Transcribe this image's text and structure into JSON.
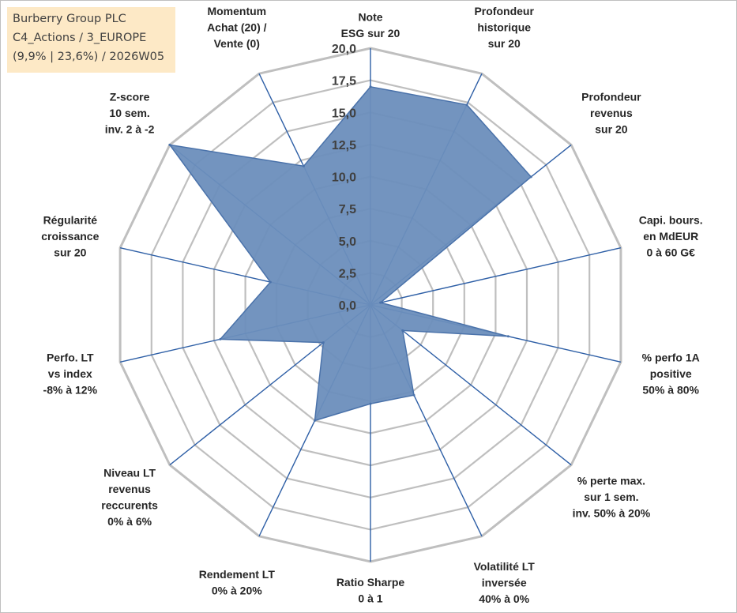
{
  "title_box": {
    "line1": "Burberry Group PLC",
    "line2": "C4_Actions / 3_EUROPE",
    "line3": "(9,9% | 23,6%) / 2026W05",
    "background": "#fde9c6"
  },
  "chart_data": {
    "type": "radar",
    "rmin": 0,
    "rmax": 20,
    "tick_step": 2.5,
    "ticks": [
      "0,0",
      "2,5",
      "5,0",
      "7,5",
      "10,0",
      "12,5",
      "15,0",
      "17,5",
      "20,0"
    ],
    "grid": true,
    "fill_color": "#6b8ebc",
    "axis_color": "#2e5fa6",
    "grid_color": "#bfbfbf",
    "axes": [
      {
        "label": [
          "Note",
          "ESG sur 20"
        ],
        "value": 17
      },
      {
        "label": [
          "Profondeur",
          "historique",
          "sur 20"
        ],
        "value": 17.3
      },
      {
        "label": [
          "Profondeur",
          "revenus",
          "sur 20"
        ],
        "value": 16
      },
      {
        "label": [
          "Capi. bours.",
          "en MdEUR",
          "0 à 60 G€"
        ],
        "value": 0.8
      },
      {
        "label": [
          "% perfo 1A",
          "positive",
          "50% à 80%"
        ],
        "value": 11
      },
      {
        "label": [
          "% perte max.",
          "sur 1 sem.",
          "inv. 50% à 20%"
        ],
        "value": 3.2
      },
      {
        "label": [
          "Volatilité LT",
          "inversée",
          "40% à 0%"
        ],
        "value": 7.8
      },
      {
        "label": [
          "Ratio Sharpe",
          "0 à 1"
        ],
        "value": 7.7
      },
      {
        "label": [
          "Rendement LT",
          "0% à 20%"
        ],
        "value": 10
      },
      {
        "label": [
          "Niveau LT",
          "revenus",
          "reccurents",
          "0% à 6%"
        ],
        "value": 4.7
      },
      {
        "label": [
          "Perfo. LT",
          "vs index",
          "-8% à 12%"
        ],
        "value": 12
      },
      {
        "label": [
          "Régularité",
          "croissance",
          "sur 20"
        ],
        "value": 8
      },
      {
        "label": [
          "Z-score",
          "10 sem.",
          "inv. 2 à -2"
        ],
        "value": 20
      },
      {
        "label": [
          "Momentum",
          "Achat (20) /",
          "Vente (0)"
        ],
        "value": 12
      }
    ]
  }
}
